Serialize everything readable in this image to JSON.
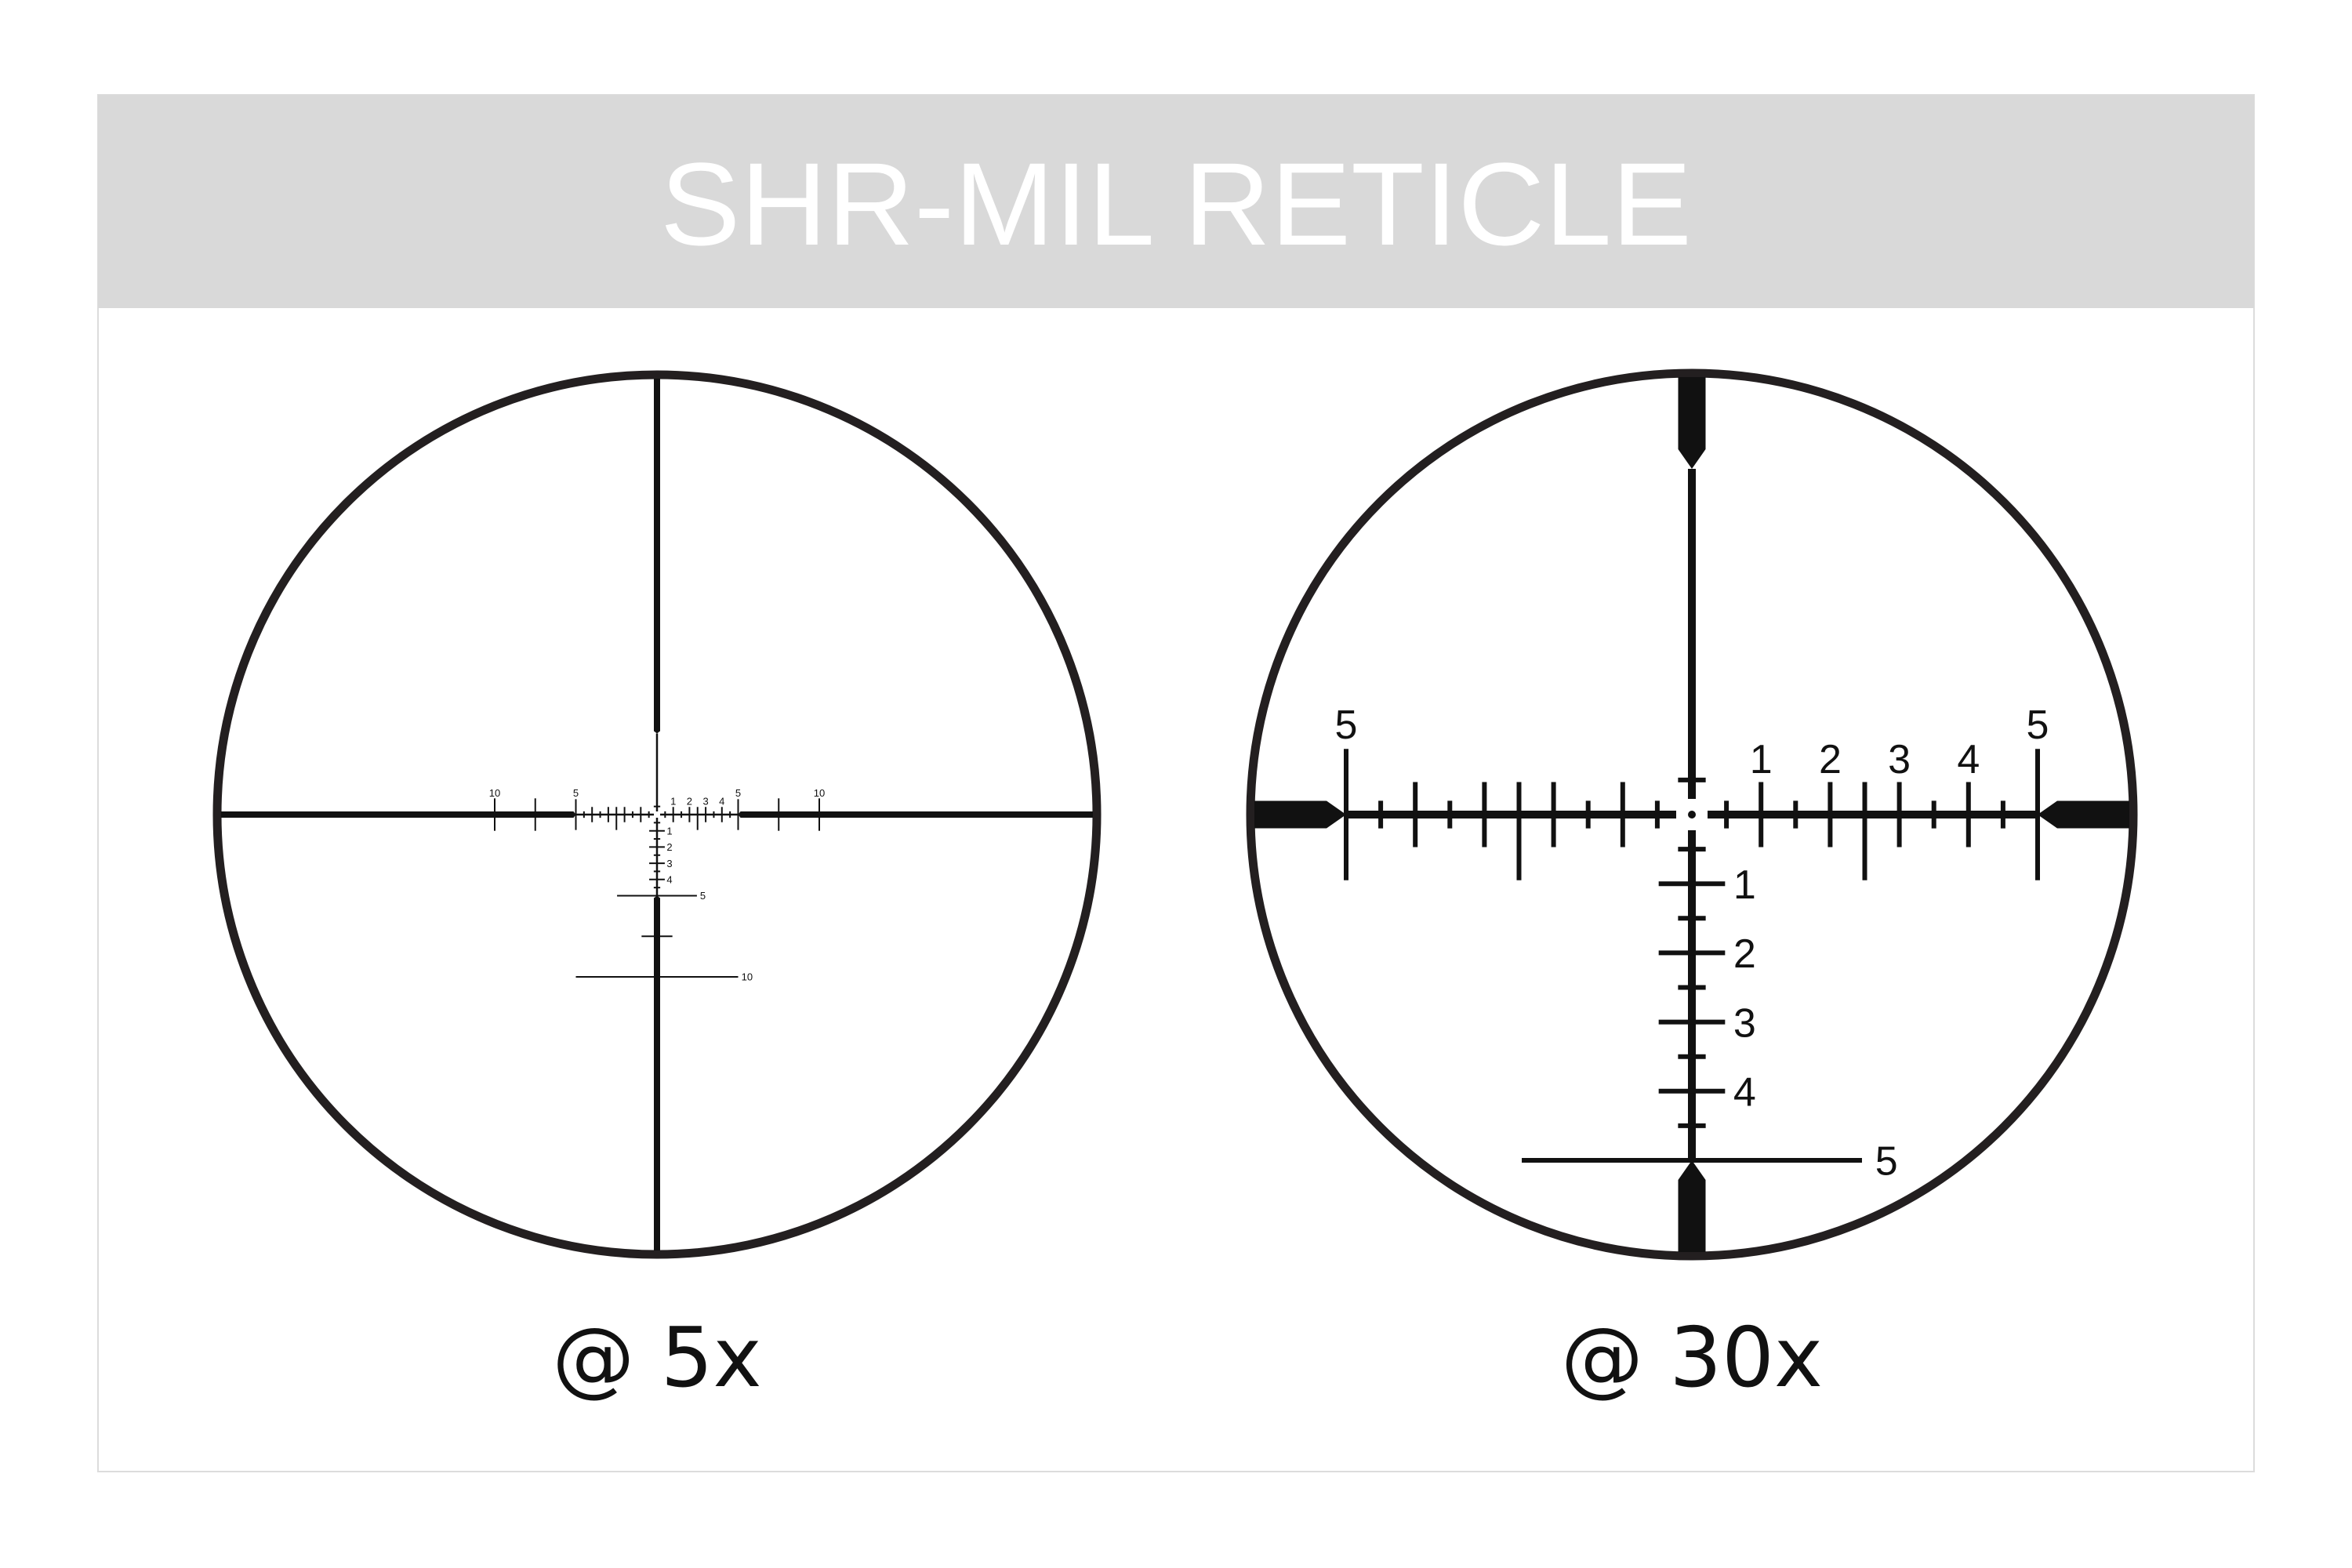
{
  "title": "SHR-MIL RETICLE",
  "colors": {
    "banner": "#d9d9d9",
    "title_text": "#ffffff",
    "frame": "#dcdcdc",
    "reticle": "#111111",
    "ring": "#231f20"
  },
  "reticles": [
    {
      "caption": "@ 5x",
      "horizontal_labels": {
        "left_5": "5",
        "left_10": "10",
        "right_1": "1",
        "right_2": "2",
        "right_3": "3",
        "right_4": "4",
        "right_5": "5",
        "right_10": "10"
      },
      "vertical_labels": {
        "v1": "1",
        "v2": "2",
        "v3": "3",
        "v4": "4",
        "v5": "5",
        "v10": "10"
      }
    },
    {
      "caption": "@ 30x",
      "horizontal_labels": {
        "left_5": "5",
        "right_1": "1",
        "right_2": "2",
        "right_3": "3",
        "right_4": "4",
        "right_5": "5"
      },
      "vertical_labels": {
        "v1": "1",
        "v2": "2",
        "v3": "3",
        "v4": "4",
        "v5": "5"
      }
    }
  ]
}
